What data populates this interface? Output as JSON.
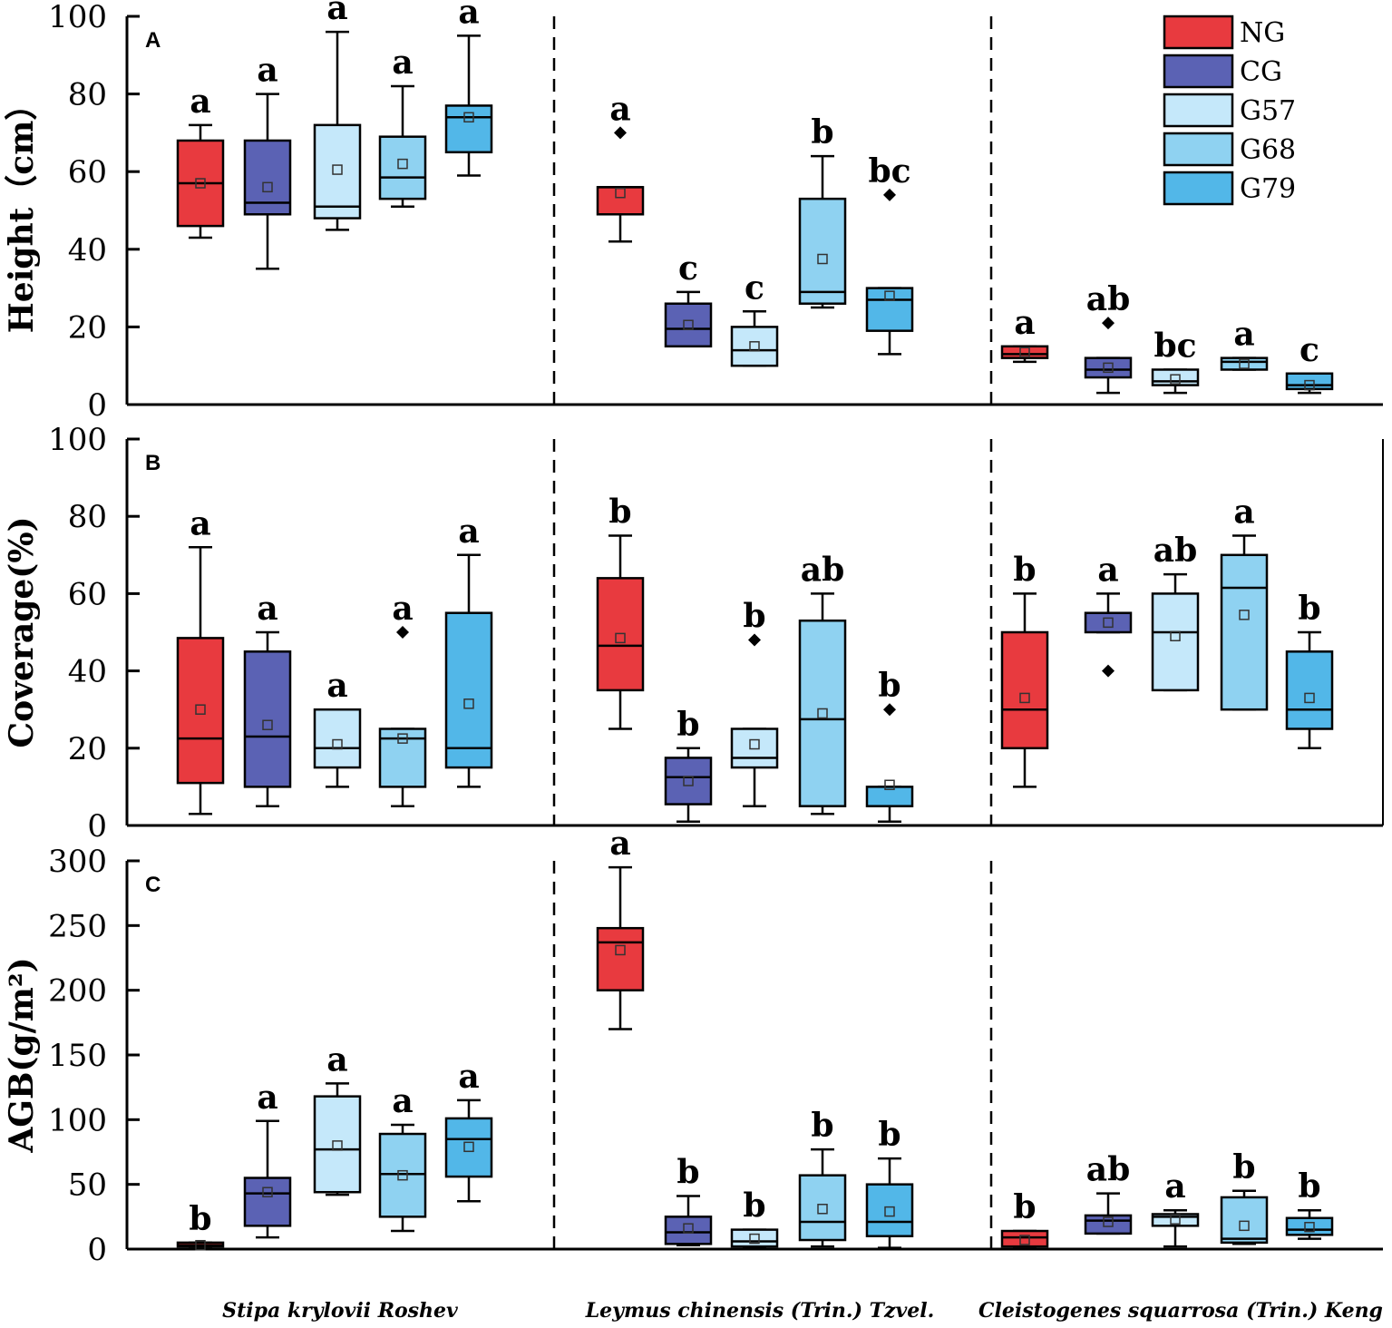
{
  "chart_data": {
    "type": "boxplot",
    "groups": [
      "NG",
      "CG",
      "G57",
      "G68",
      "G79"
    ],
    "colors": {
      "NG": "#e83a3f",
      "CG": "#5b62b4",
      "G57": "#c5e8fa",
      "G68": "#8fd2f1",
      "G79": "#52b7e8"
    },
    "species": [
      "Stipa krylovii Roshev",
      "Leymus chinensis (Trin.) Tzvel.",
      "Cleistogenes squarrosa (Trin.) Keng"
    ],
    "legend": {
      "position": "top-right",
      "entries": [
        "NG",
        "CG",
        "G57",
        "G68",
        "G79"
      ]
    },
    "panels": [
      {
        "panel": "A",
        "ylabel": "Height（cm）",
        "ylim": [
          0,
          100
        ],
        "yticks": [
          0,
          20,
          40,
          60,
          80,
          100
        ],
        "boxes": [
          [
            {
              "group": "NG",
              "min": 43,
              "q1": 46,
              "median": 57,
              "q3": 68,
              "max": 72,
              "mean": 57,
              "outliers": [],
              "letter": "a"
            },
            {
              "group": "CG",
              "min": 35,
              "q1": 49,
              "median": 52,
              "q3": 68,
              "max": 80,
              "mean": 56,
              "outliers": [],
              "letter": "a"
            },
            {
              "group": "G57",
              "min": 45,
              "q1": 48,
              "median": 51,
              "q3": 72,
              "max": 96,
              "mean": 60.5,
              "outliers": [],
              "letter": "a"
            },
            {
              "group": "G68",
              "min": 51,
              "q1": 53,
              "median": 58.5,
              "q3": 69,
              "max": 82,
              "mean": 62,
              "outliers": [],
              "letter": "a"
            },
            {
              "group": "G79",
              "min": 59,
              "q1": 65,
              "median": 74,
              "q3": 77,
              "max": 95,
              "mean": 74,
              "outliers": [],
              "letter": "a"
            }
          ],
          [
            {
              "group": "NG",
              "min": 42,
              "q1": 49,
              "median": 56,
              "q3": 56,
              "max": 56,
              "mean": 54.5,
              "outliers": [
                70
              ],
              "letter": "a"
            },
            {
              "group": "CG",
              "min": 15,
              "q1": 15,
              "median": 19.5,
              "q3": 26,
              "max": 29,
              "mean": 20.5,
              "outliers": [],
              "letter": "c"
            },
            {
              "group": "G57",
              "min": 10,
              "q1": 10,
              "median": 14,
              "q3": 20,
              "max": 24,
              "mean": 15,
              "outliers": [],
              "letter": "c"
            },
            {
              "group": "G68",
              "min": 25,
              "q1": 26,
              "median": 29,
              "q3": 53,
              "max": 64,
              "mean": 37.5,
              "outliers": [],
              "letter": "b"
            },
            {
              "group": "G79",
              "min": 13,
              "q1": 19,
              "median": 27,
              "q3": 30,
              "max": 30,
              "mean": 28,
              "outliers": [
                54
              ],
              "letter": "bc"
            }
          ],
          [
            {
              "group": "NG",
              "min": 11,
              "q1": 12,
              "median": 13,
              "q3": 15,
              "max": 15,
              "mean": 13.5,
              "outliers": [],
              "letter": "a"
            },
            {
              "group": "CG",
              "min": 3,
              "q1": 7,
              "median": 9,
              "q3": 12,
              "max": 12,
              "mean": 9.5,
              "outliers": [
                21
              ],
              "letter": "ab"
            },
            {
              "group": "G57",
              "min": 3,
              "q1": 5,
              "median": 6,
              "q3": 9,
              "max": 9,
              "mean": 6.5,
              "outliers": [],
              "letter": "bc"
            },
            {
              "group": "G68",
              "min": 9,
              "q1": 9,
              "median": 11,
              "q3": 12,
              "max": 12,
              "mean": 10.5,
              "outliers": [],
              "letter": "a"
            },
            {
              "group": "G79",
              "min": 3,
              "q1": 4,
              "median": 5,
              "q3": 8,
              "max": 8,
              "mean": 5,
              "outliers": [],
              "letter": "c"
            }
          ]
        ]
      },
      {
        "panel": "B",
        "ylabel": "Coverage(%)",
        "ylim": [
          0,
          100
        ],
        "yticks": [
          0,
          20,
          40,
          60,
          80,
          100
        ],
        "boxes": [
          [
            {
              "group": "NG",
              "min": 3,
              "q1": 11,
              "median": 22.5,
              "q3": 48.5,
              "max": 72,
              "mean": 30,
              "outliers": [],
              "letter": "a"
            },
            {
              "group": "CG",
              "min": 5,
              "q1": 10,
              "median": 23,
              "q3": 45,
              "max": 50,
              "mean": 26,
              "outliers": [],
              "letter": "a"
            },
            {
              "group": "G57",
              "min": 10,
              "q1": 15,
              "median": 20,
              "q3": 30,
              "max": 30,
              "mean": 21,
              "outliers": [],
              "letter": "a"
            },
            {
              "group": "G68",
              "min": 5,
              "q1": 10,
              "median": 22.5,
              "q3": 25,
              "max": 25,
              "mean": 22.5,
              "outliers": [
                50
              ],
              "letter": "a"
            },
            {
              "group": "G79",
              "min": 10,
              "q1": 15,
              "median": 20,
              "q3": 55,
              "max": 70,
              "mean": 31.5,
              "outliers": [],
              "letter": "a"
            }
          ],
          [
            {
              "group": "NG",
              "min": 25,
              "q1": 35,
              "median": 46.5,
              "q3": 64,
              "max": 75,
              "mean": 48.5,
              "outliers": [],
              "letter": "b"
            },
            {
              "group": "CG",
              "min": 1,
              "q1": 5.5,
              "median": 12.5,
              "q3": 17.5,
              "max": 20,
              "mean": 11.5,
              "outliers": [],
              "letter": "b"
            },
            {
              "group": "G57",
              "min": 5,
              "q1": 15,
              "median": 17.5,
              "q3": 25,
              "max": 25,
              "mean": 21,
              "outliers": [
                48
              ],
              "letter": "b"
            },
            {
              "group": "G68",
              "min": 3,
              "q1": 5,
              "median": 27.5,
              "q3": 53,
              "max": 60,
              "mean": 29,
              "outliers": [],
              "letter": "ab"
            },
            {
              "group": "G79",
              "min": 1,
              "q1": 5,
              "median": 5,
              "q3": 10,
              "max": 10,
              "mean": 10.5,
              "outliers": [
                30
              ],
              "letter": "b"
            }
          ],
          [
            {
              "group": "NG",
              "min": 10,
              "q1": 20,
              "median": 30,
              "q3": 50,
              "max": 60,
              "mean": 33,
              "outliers": [],
              "letter": "b"
            },
            {
              "group": "CG",
              "min": 50,
              "q1": 50,
              "median": 55,
              "q3": 55,
              "max": 60,
              "mean": 52.5,
              "outliers": [
                40
              ],
              "letter": "a"
            },
            {
              "group": "G57",
              "min": 35,
              "q1": 35,
              "median": 50,
              "q3": 60,
              "max": 65,
              "mean": 49,
              "outliers": [],
              "letter": "ab"
            },
            {
              "group": "G68",
              "min": 30,
              "q1": 30,
              "median": 61.5,
              "q3": 70,
              "max": 75,
              "mean": 54.5,
              "outliers": [],
              "letter": "a"
            },
            {
              "group": "G79",
              "min": 20,
              "q1": 25,
              "median": 30,
              "q3": 45,
              "max": 50,
              "mean": 33,
              "outliers": [],
              "letter": "b"
            }
          ]
        ]
      },
      {
        "panel": "C",
        "ylabel": "AGB(g/m²)",
        "ylim": [
          0,
          300
        ],
        "yticks": [
          0,
          50,
          100,
          150,
          200,
          250,
          300
        ],
        "boxes": [
          [
            {
              "group": "NG",
              "min": 2,
              "q1": 2,
              "median": 3,
              "q3": 5,
              "max": 5,
              "mean": 3,
              "outliers": [],
              "letter": "b"
            },
            {
              "group": "CG",
              "min": 9,
              "q1": 18,
              "median": 43,
              "q3": 55,
              "max": 99,
              "mean": 44,
              "outliers": [],
              "letter": "a"
            },
            {
              "group": "G57",
              "min": 42,
              "q1": 44,
              "median": 77,
              "q3": 118,
              "max": 128,
              "mean": 80,
              "outliers": [],
              "letter": "a"
            },
            {
              "group": "G68",
              "min": 14,
              "q1": 25,
              "median": 58,
              "q3": 89,
              "max": 96,
              "mean": 57,
              "outliers": [],
              "letter": "a"
            },
            {
              "group": "G79",
              "min": 37,
              "q1": 56,
              "median": 85,
              "q3": 101,
              "max": 115,
              "mean": 79,
              "outliers": [],
              "letter": "a"
            }
          ],
          [
            {
              "group": "NG",
              "min": 170,
              "q1": 200,
              "median": 237,
              "q3": 248,
              "max": 295,
              "mean": 231,
              "outliers": [],
              "letter": "a"
            },
            {
              "group": "CG",
              "min": 3,
              "q1": 4,
              "median": 13,
              "q3": 25,
              "max": 41,
              "mean": 16,
              "outliers": [],
              "letter": "b"
            },
            {
              "group": "G57",
              "min": 1,
              "q1": 2,
              "median": 6,
              "q3": 15,
              "max": 15,
              "mean": 8,
              "outliers": [],
              "letter": "b"
            },
            {
              "group": "G68",
              "min": 2,
              "q1": 7,
              "median": 21,
              "q3": 57,
              "max": 77,
              "mean": 31,
              "outliers": [],
              "letter": "b"
            },
            {
              "group": "G79",
              "min": 1,
              "q1": 10,
              "median": 21,
              "q3": 50,
              "max": 70,
              "mean": 29,
              "outliers": [],
              "letter": "b"
            }
          ],
          [
            {
              "group": "NG",
              "min": 2,
              "q1": 2,
              "median": 9,
              "q3": 14,
              "max": 14,
              "mean": 7,
              "outliers": [],
              "letter": "b"
            },
            {
              "group": "CG",
              "min": 12,
              "q1": 12,
              "median": 22,
              "q3": 26,
              "max": 43,
              "mean": 21,
              "outliers": [],
              "letter": "ab"
            },
            {
              "group": "G57",
              "min": 2,
              "q1": 18,
              "median": 25,
              "q3": 27,
              "max": 30,
              "mean": 23,
              "outliers": [],
              "letter": "a"
            },
            {
              "group": "G68",
              "min": 4,
              "q1": 5,
              "median": 8,
              "q3": 40,
              "max": 45,
              "mean": 18,
              "outliers": [],
              "letter": "b"
            },
            {
              "group": "G79",
              "min": 8,
              "q1": 11,
              "median": 15,
              "q3": 24,
              "max": 30,
              "mean": 17,
              "outliers": [],
              "letter": "b"
            }
          ]
        ]
      }
    ]
  }
}
